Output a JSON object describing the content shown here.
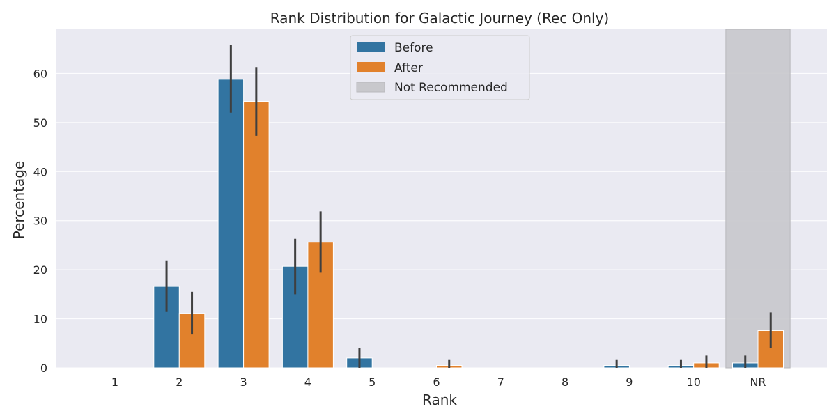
{
  "chart_data": {
    "type": "bar",
    "title": "Rank Distribution for Galactic Journey (Rec Only)",
    "xlabel": "Rank",
    "ylabel": "Percentage",
    "categories": [
      "1",
      "2",
      "3",
      "4",
      "5",
      "6",
      "7",
      "8",
      "9",
      "10",
      "NR"
    ],
    "ylim": [
      0,
      69
    ],
    "yticks": [
      0,
      10,
      20,
      30,
      40,
      50,
      60
    ],
    "grid": true,
    "legend_position": "top-center",
    "series": [
      {
        "name": "Before",
        "color": "#3274a1",
        "values": [
          0,
          16.6,
          58.8,
          20.7,
          2.0,
          0,
          0,
          0,
          0.5,
          0.5,
          1.0
        ],
        "error_low": [
          0,
          11.4,
          52.0,
          15.0,
          0,
          0,
          0,
          0,
          0,
          0,
          0
        ],
        "error_high": [
          0,
          21.9,
          65.8,
          26.3,
          4.0,
          0,
          0,
          0,
          1.6,
          1.6,
          2.5
        ]
      },
      {
        "name": "After",
        "color": "#e1812c",
        "values": [
          0,
          11.1,
          54.3,
          25.6,
          0,
          0.5,
          0,
          0,
          0,
          1.0,
          7.6
        ],
        "error_low": [
          0,
          6.8,
          47.3,
          19.4,
          0,
          0,
          0,
          0,
          0,
          0,
          4.0
        ],
        "error_high": [
          0,
          15.5,
          61.3,
          31.9,
          0,
          1.6,
          0,
          0,
          0,
          2.5,
          11.3
        ]
      }
    ],
    "highlight_band": {
      "category": "NR",
      "label": "Not Recommended",
      "color": "#c8c8cc"
    }
  }
}
